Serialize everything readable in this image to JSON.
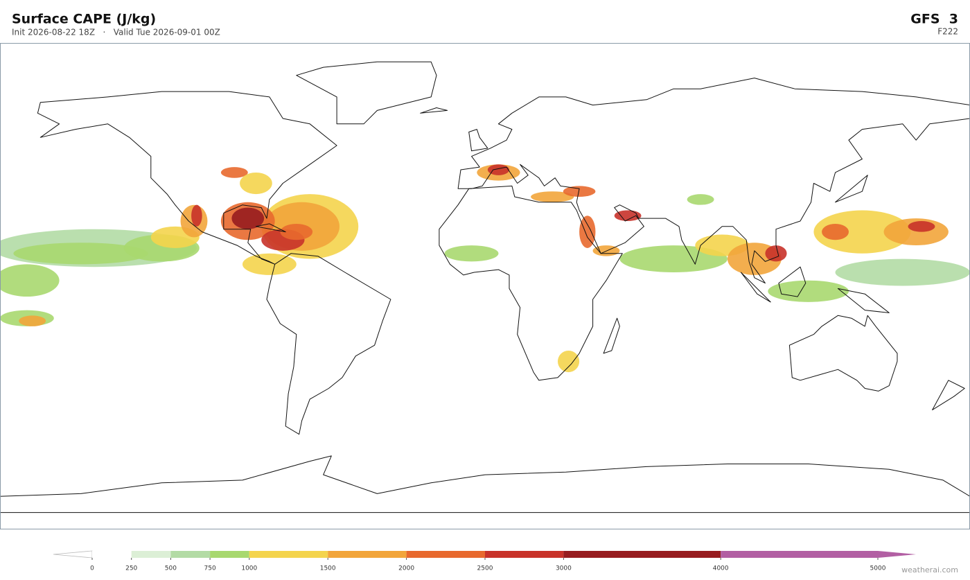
{
  "header": {
    "title": "Surface CAPE  (J/kg)",
    "subtitle": "Init 2026-08-22 18Z   ·   Valid Tue 2026-09-01 00Z",
    "model": "GFS  3",
    "forecast_hour": "F222"
  },
  "colorbar": {
    "ticks": [
      0,
      250,
      500,
      750,
      1000,
      1500,
      2000,
      2500,
      3000,
      4000,
      5000
    ],
    "colors": [
      "#ffffff",
      "#dcefd6",
      "#b3dba5",
      "#a8d86f",
      "#f4d44d",
      "#f2a53b",
      "#e8692e",
      "#c8322a",
      "#971c1f",
      "#b25fa3"
    ],
    "under_color": "#ffffff",
    "over_color": "#b25fa3"
  },
  "footer": {
    "credit": "weatherai.com"
  }
}
